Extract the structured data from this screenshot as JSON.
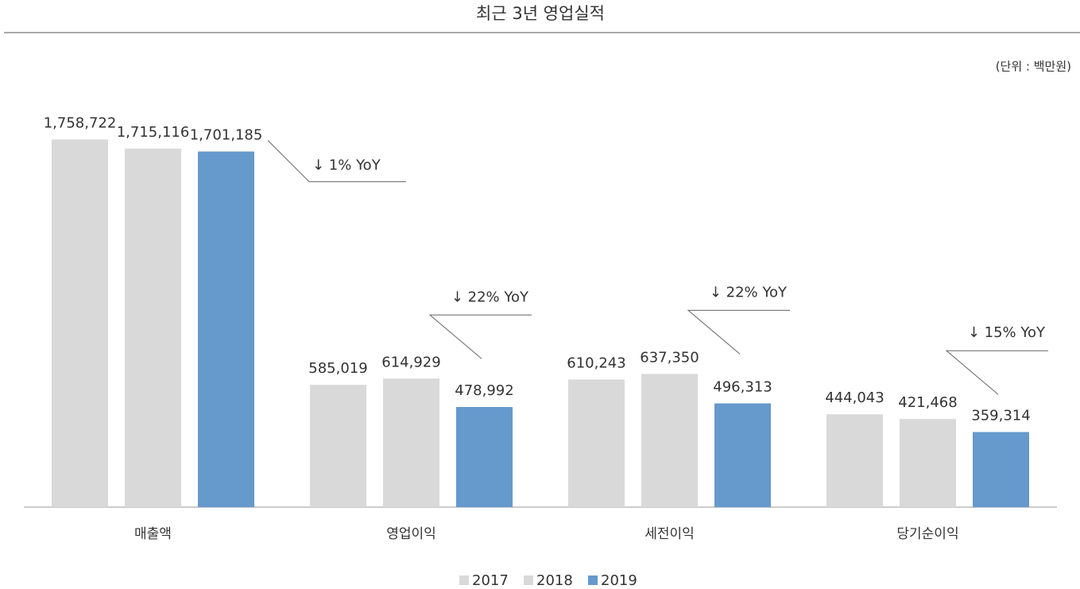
{
  "chart_data": {
    "type": "bar",
    "title": "최근 3년 영업실적",
    "unit_label": "(단위 : 백만원)",
    "categories": [
      "매출액",
      "영업이익",
      "세전이익",
      "당기순이익"
    ],
    "series": [
      {
        "name": "2017",
        "color": "#d9d9d9",
        "values": [
          1758722,
          585019,
          610243,
          444043
        ],
        "value_labels": [
          "1,758,722",
          "585,019",
          "610,243",
          "444,043"
        ]
      },
      {
        "name": "2018",
        "color": "#d9d9d9",
        "values": [
          1715116,
          614929,
          637350,
          421468
        ],
        "value_labels": [
          "1,715,116",
          "614,929",
          "637,350",
          "421,468"
        ]
      },
      {
        "name": "2019",
        "color": "#6699cc",
        "values": [
          1701185,
          478992,
          496313,
          359314
        ],
        "value_labels": [
          "1,701,185",
          "478,992",
          "496,313",
          "359,314"
        ]
      }
    ],
    "annotations": [
      "↓ 1% YoY",
      "↓ 22% YoY",
      "↓ 22% YoY",
      "↓ 15% YoY"
    ],
    "ylim": [
      0,
      2000000
    ],
    "legend": "bottom"
  }
}
